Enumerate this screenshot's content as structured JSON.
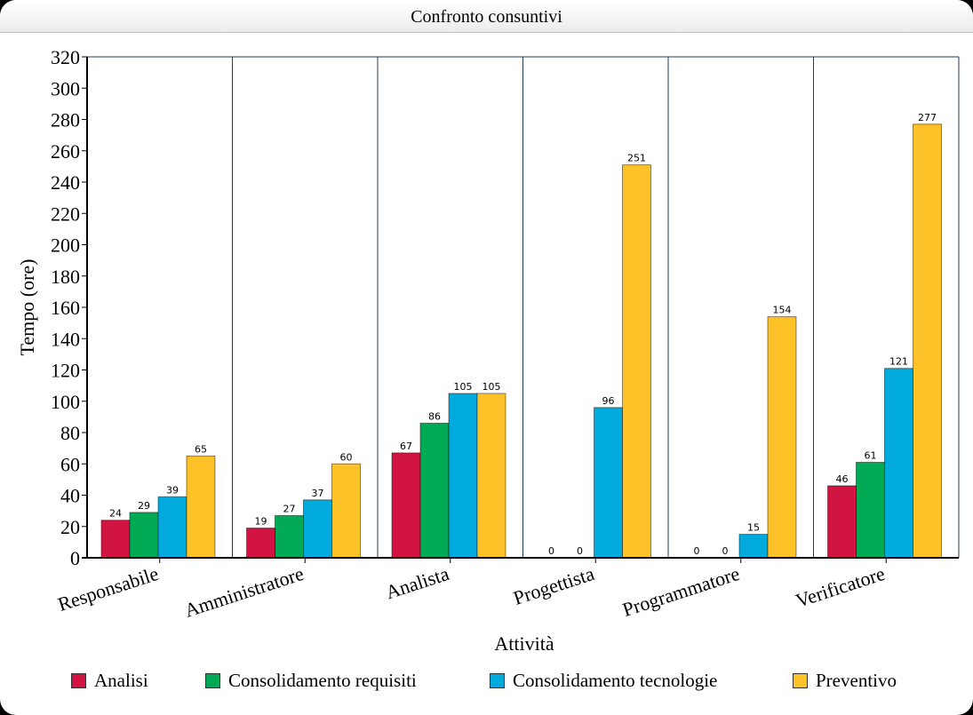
{
  "window": {
    "title": "Confronto consuntivi"
  },
  "chart_data": {
    "type": "bar",
    "title": "Confronto consuntivi",
    "xlabel": "Attività",
    "ylabel": "Tempo (ore)",
    "ylim": [
      0,
      320
    ],
    "ytick_step": 20,
    "grid": "vertical separators between categories",
    "legend_position": "bottom",
    "categories": [
      "Responsabile",
      "Amministratore",
      "Analista",
      "Progettista",
      "Programmatore",
      "Verificatore"
    ],
    "series": [
      {
        "name": "Analisi",
        "color": "#d11441",
        "values": [
          24,
          19,
          67,
          0,
          0,
          46
        ]
      },
      {
        "name": "Consolidamento requisiti",
        "color": "#00aa55",
        "values": [
          29,
          27,
          86,
          0,
          0,
          61
        ]
      },
      {
        "name": "Consolidamento tecnologie",
        "color": "#00aadd",
        "values": [
          39,
          37,
          105,
          96,
          15,
          121
        ]
      },
      {
        "name": "Preventivo",
        "color": "#fdc228",
        "values": [
          65,
          60,
          105,
          251,
          154,
          277
        ]
      }
    ]
  }
}
